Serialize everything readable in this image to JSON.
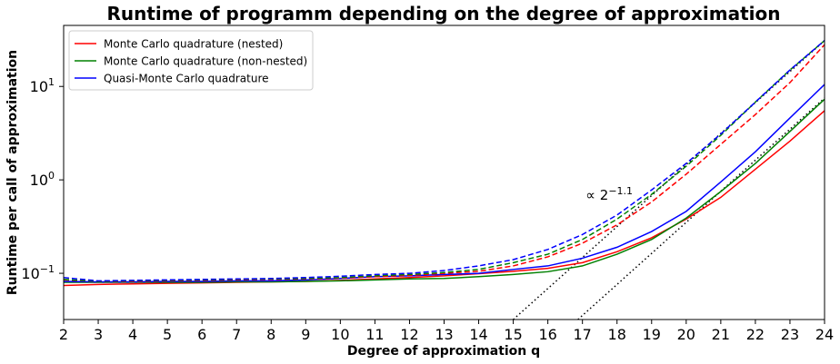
{
  "chart_data": {
    "type": "line",
    "title": "Runtime of programm depending on the degree of approximation",
    "xlabel": "Degree of approximation q",
    "ylabel": "Runtime per call of approximation",
    "x": [
      2,
      3,
      4,
      5,
      6,
      7,
      8,
      9,
      10,
      11,
      12,
      13,
      14,
      15,
      16,
      17,
      18,
      19,
      20,
      21,
      22,
      23,
      24
    ],
    "xlim": [
      2,
      24
    ],
    "xticks": [
      2,
      3,
      4,
      5,
      6,
      7,
      8,
      9,
      10,
      11,
      12,
      13,
      14,
      15,
      16,
      17,
      18,
      19,
      20,
      21,
      22,
      23,
      24
    ],
    "ylim": [
      0.032,
      45
    ],
    "log_y": true,
    "yticks": [
      {
        "value": 0.1,
        "label": "10",
        "exponent": "−1"
      },
      {
        "value": 1,
        "label": "10",
        "exponent": "0"
      },
      {
        "value": 10,
        "label": "10",
        "exponent": "1"
      }
    ],
    "legend": "upper left",
    "series": [
      {
        "name": "Monte Carlo quadrature (nested)",
        "color": "#ff0000",
        "linestyle": "solid",
        "values": [
          0.074,
          0.076,
          0.077,
          0.078,
          0.079,
          0.08,
          0.081,
          0.082,
          0.084,
          0.087,
          0.09,
          0.094,
          0.099,
          0.105,
          0.113,
          0.13,
          0.17,
          0.24,
          0.38,
          0.65,
          1.3,
          2.6,
          5.5
        ]
      },
      {
        "name": "Monte Carlo quadrature (non-nested)",
        "color": "#008000",
        "linestyle": "solid",
        "values": [
          0.08,
          0.08,
          0.08,
          0.08,
          0.08,
          0.081,
          0.081,
          0.082,
          0.083,
          0.085,
          0.087,
          0.088,
          0.092,
          0.097,
          0.104,
          0.12,
          0.16,
          0.23,
          0.39,
          0.75,
          1.5,
          3.3,
          7.3
        ]
      },
      {
        "name": "Quasi-Monte Carlo quadrature",
        "color": "#0000ff",
        "linestyle": "solid",
        "values": [
          0.082,
          0.081,
          0.081,
          0.082,
          0.082,
          0.083,
          0.083,
          0.085,
          0.088,
          0.092,
          0.094,
          0.097,
          0.1,
          0.11,
          0.12,
          0.145,
          0.19,
          0.28,
          0.46,
          0.95,
          2.0,
          4.6,
          10.5
        ]
      },
      {
        "color": "#ff0000",
        "linestyle": "dashed",
        "values": [
          0.085,
          0.082,
          0.082,
          0.083,
          0.084,
          0.085,
          0.086,
          0.087,
          0.089,
          0.092,
          0.095,
          0.1,
          0.105,
          0.12,
          0.15,
          0.21,
          0.33,
          0.58,
          1.15,
          2.4,
          5.0,
          11,
          28
        ]
      },
      {
        "color": "#008000",
        "linestyle": "dashed",
        "values": [
          0.086,
          0.082,
          0.083,
          0.084,
          0.085,
          0.086,
          0.087,
          0.088,
          0.09,
          0.094,
          0.097,
          0.102,
          0.11,
          0.13,
          0.16,
          0.23,
          0.38,
          0.7,
          1.4,
          3.0,
          6.8,
          15,
          31
        ]
      },
      {
        "color": "#0000ff",
        "linestyle": "dashed",
        "values": [
          0.09,
          0.083,
          0.084,
          0.085,
          0.086,
          0.087,
          0.088,
          0.09,
          0.093,
          0.097,
          0.1,
          0.107,
          0.12,
          0.14,
          0.18,
          0.26,
          0.42,
          0.78,
          1.5,
          3.1,
          6.8,
          15,
          31
        ]
      }
    ],
    "reference_lines": [
      {
        "color": "#000000",
        "x": [
          15,
          24
        ],
        "values": [
          0.032,
          31
        ]
      },
      {
        "color": "#000000",
        "x": [
          16.87,
          24
        ],
        "values": [
          0.032,
          7.5
        ]
      }
    ],
    "annotation": {
      "text": "∝ 2",
      "exponent": "−1.1",
      "x": 17.2,
      "y": 0.7
    }
  }
}
